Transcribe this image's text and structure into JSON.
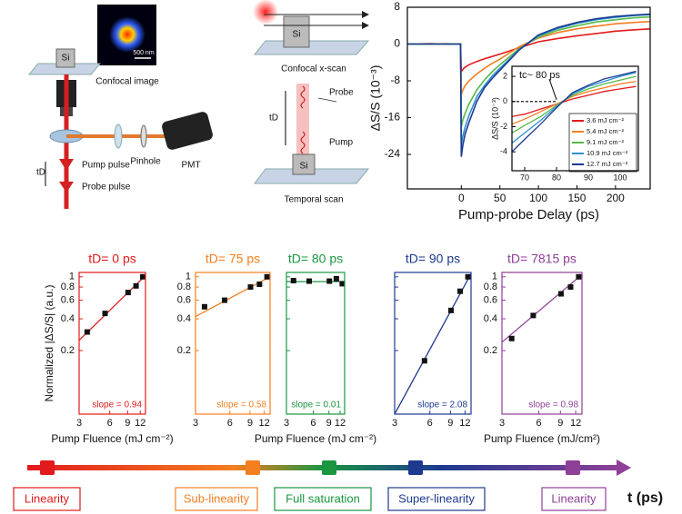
{
  "diagram": {
    "confocal_image_label": "Confocal image",
    "scale_bar": "500 nm",
    "si_labels": [
      "Si",
      "Si",
      "Si"
    ],
    "pinhole": "Pinhole",
    "pmt": "PMT",
    "pump_pulse": "Pump pulse",
    "probe_pulse": "Probe pulse",
    "td_labels": [
      "tD",
      "tD"
    ],
    "x_scan": "Confocal x-scan",
    "probe": "Probe",
    "pump": "Pump",
    "temporal_scan": "Temporal scan"
  },
  "chart_data": [
    {
      "type": "line",
      "xlabel": "Pump-probe Delay (ps)",
      "ylabel": "ΔS/S (10⁻³)",
      "x": [
        -70,
        -40,
        -20,
        -5,
        -1,
        0,
        2,
        5,
        10,
        20,
        30,
        40,
        50,
        75,
        100,
        125,
        150,
        175,
        200,
        225,
        245
      ],
      "series": [
        {
          "color": "#e31a1c",
          "values": [
            0,
            0.1,
            0,
            0,
            0,
            -6,
            -5.5,
            -5,
            -4.5,
            -3.8,
            -3.2,
            -2.7,
            -2.2,
            -0.8,
            0.5,
            1.2,
            1.8,
            2.3,
            2.8,
            3.1,
            3.3
          ]
        },
        {
          "color": "#f57e20",
          "values": [
            0,
            0,
            0.1,
            0,
            0,
            -11,
            -10,
            -9,
            -8,
            -6.5,
            -5.3,
            -4.2,
            -3.3,
            -0.6,
            1.3,
            2.5,
            3.3,
            3.9,
            4.4,
            4.7,
            4.9
          ]
        },
        {
          "color": "#56b947",
          "values": [
            0,
            0,
            0,
            0,
            0,
            -18,
            -16.5,
            -15,
            -13,
            -10,
            -7.8,
            -6,
            -4.5,
            -1,
            1.5,
            3,
            4,
            4.8,
            5.3,
            5.7,
            5.9
          ]
        },
        {
          "color": "#2a8fd0",
          "values": [
            0,
            0,
            0,
            0,
            0,
            -22,
            -20,
            -18,
            -15.5,
            -11.5,
            -9,
            -7,
            -5.3,
            -1.2,
            1.8,
            3.4,
            4.5,
            5.3,
            5.8,
            6.2,
            6.4
          ]
        },
        {
          "color": "#1d3a8f",
          "values": [
            0,
            0,
            0,
            0,
            0,
            -24.5,
            -22,
            -19.5,
            -17,
            -12.5,
            -9.5,
            -7.5,
            -5.7,
            -1.3,
            2,
            3.6,
            4.7,
            5.5,
            6,
            6.3,
            6.5
          ]
        }
      ],
      "xlim": [
        -70,
        245
      ],
      "ylim": [
        -31.5,
        8
      ],
      "xticks": [
        0,
        50,
        100,
        150,
        200
      ],
      "yticks": [
        8,
        0,
        -8,
        -16,
        -24
      ]
    },
    {
      "type": "line",
      "ylabel": "ΔS/S (10⁻³)",
      "annotation": "tc~ 80 ps",
      "threshold_x": 80,
      "x": [
        66,
        70,
        75,
        80,
        85,
        90,
        95,
        100,
        105
      ],
      "series": [
        {
          "name": "3.6 mJ cm⁻²",
          "color": "#e31a1c",
          "values": [
            -1.2,
            -1,
            -0.6,
            -0.2,
            0.2,
            0.5,
            0.8,
            1,
            1.2
          ]
        },
        {
          "name": "5.4 mJ cm⁻²",
          "color": "#f57e20",
          "values": [
            -1.8,
            -1.4,
            -0.8,
            -0.2,
            0.4,
            0.8,
            1.1,
            1.4,
            1.6
          ]
        },
        {
          "name": "9.1 mJ cm⁻²",
          "color": "#56b947",
          "values": [
            -2.5,
            -1.9,
            -1.2,
            -0.3,
            0.5,
            1,
            1.4,
            1.7,
            2
          ]
        },
        {
          "name": "10.9 mJ cm⁻²",
          "color": "#2a8fd0",
          "values": [
            -3.3,
            -2.5,
            -1.5,
            -0.4,
            0.6,
            1.2,
            1.6,
            2,
            2.3
          ]
        },
        {
          "name": "12.7 mJ cm⁻²",
          "color": "#1d3a8f",
          "values": [
            -4,
            -3,
            -1.8,
            -0.5,
            0.7,
            1.3,
            1.8,
            2.1,
            2.4
          ]
        }
      ],
      "xlim": [
        66,
        105.7
      ],
      "ylim": [
        -5.5,
        2.8
      ],
      "xticks": [
        70,
        80,
        90,
        100
      ],
      "yticks": [
        2,
        0,
        -2,
        -4
      ]
    },
    {
      "type": "scatter",
      "title": "tD= 0 ps",
      "color": "#e31a1c",
      "annotation": "slope = 0.94",
      "xlabel": "Pump Fluence (mJ cm⁻²)",
      "ylabel": "Normalized |ΔS/S| (a.u.)",
      "show_yticklabels": true,
      "x": [
        3.6,
        5.4,
        9.1,
        10.9,
        12.7
      ],
      "values": [
        0.3,
        0.45,
        0.71,
        0.82,
        1.0
      ],
      "fit_x": [
        3,
        13.5
      ],
      "fit_values": [
        0.25,
        1.03
      ],
      "xscale": "log",
      "yscale": "log",
      "xlim": [
        3,
        13.5
      ],
      "ylim": [
        0.05,
        1.1
      ],
      "xticks": [
        3,
        6,
        9,
        12
      ],
      "yticks": [
        0.2,
        0.4,
        0.6,
        0.8,
        1
      ]
    },
    {
      "type": "scatter",
      "title": "tD= 75 ps",
      "color": "#f57e20",
      "annotation": "slope = 0.58",
      "show_yticklabels": true,
      "x": [
        3.6,
        5.4,
        9.1,
        10.9,
        12.7
      ],
      "values": [
        0.52,
        0.6,
        0.8,
        0.85,
        1.0
      ],
      "fit_x": [
        3,
        13.5
      ],
      "fit_values": [
        0.42,
        1.0
      ],
      "xscale": "log",
      "yscale": "log",
      "xlim": [
        3,
        13.5
      ],
      "ylim": [
        0.05,
        1.1
      ],
      "xticks": [
        3,
        6,
        9,
        12
      ],
      "yticks": [
        0.2,
        0.4,
        0.6,
        0.8,
        1
      ]
    },
    {
      "type": "scatter",
      "title": "tD= 80 ps",
      "color": "#1a9641",
      "annotation": "slope = 0.01",
      "xlabel": "Pump Fluence (mJ cm⁻²)",
      "show_yticklabels": false,
      "x": [
        3.6,
        5.4,
        9.1,
        10.9,
        12.7
      ],
      "values": [
        0.92,
        0.91,
        0.91,
        0.96,
        0.86
      ],
      "fit_x": [
        3,
        13.5
      ],
      "fit_values": [
        0.9,
        0.9
      ],
      "xscale": "log",
      "yscale": "log",
      "xlim": [
        3,
        13.5
      ],
      "ylim": [
        0.05,
        1.1
      ],
      "xticks": [
        3,
        6,
        9,
        12
      ],
      "yticks": [
        0.2,
        0.4,
        0.6,
        0.8,
        1
      ]
    },
    {
      "type": "scatter",
      "title": "tD= 90 ps",
      "color": "#1d3a8f",
      "annotation": "slope = 2.08",
      "show_yticklabels": false,
      "x": [
        3.6,
        5.4,
        9.1,
        10.9,
        12.7
      ],
      "values": [
        null,
        0.16,
        0.48,
        0.73,
        1.0
      ],
      "fit_x": [
        3,
        13.5
      ],
      "fit_values": [
        0.05,
        1.07
      ],
      "xscale": "log",
      "yscale": "log",
      "xlim": [
        3,
        13.5
      ],
      "ylim": [
        0.05,
        1.1
      ],
      "xticks": [
        3,
        6,
        9,
        12
      ],
      "yticks": [
        0.2,
        0.4,
        0.6,
        0.8,
        1
      ]
    },
    {
      "type": "scatter",
      "title": "tD= 7815 ps",
      "color": "#8e3f97",
      "annotation": "slope = 0.98",
      "xlabel": "Pump Fluence (mJ/cm²)",
      "show_yticklabels": true,
      "x": [
        3.6,
        5.4,
        9.1,
        10.9,
        12.7
      ],
      "values": [
        0.26,
        0.43,
        0.69,
        0.8,
        1.0
      ],
      "fit_x": [
        3,
        13.5
      ],
      "fit_values": [
        0.24,
        1.05
      ],
      "xscale": "log",
      "yscale": "log",
      "xlim": [
        3,
        13.5
      ],
      "ylim": [
        0.05,
        1.1
      ],
      "xticks": [
        3,
        6,
        9,
        12
      ],
      "yticks": [
        0.2,
        0.4,
        0.6,
        0.8,
        1
      ]
    }
  ],
  "timeline": {
    "label": "t (ps)",
    "regimes": [
      {
        "label": "Linearity",
        "color": "#e31a1c"
      },
      {
        "label": "Sub-linearity",
        "color": "#f57e20"
      },
      {
        "label": "Full saturation",
        "color": "#1a9641"
      },
      {
        "label": "Super-linearity",
        "color": "#1d3a8f"
      },
      {
        "label": "Linearity",
        "color": "#8e3f97"
      }
    ]
  }
}
